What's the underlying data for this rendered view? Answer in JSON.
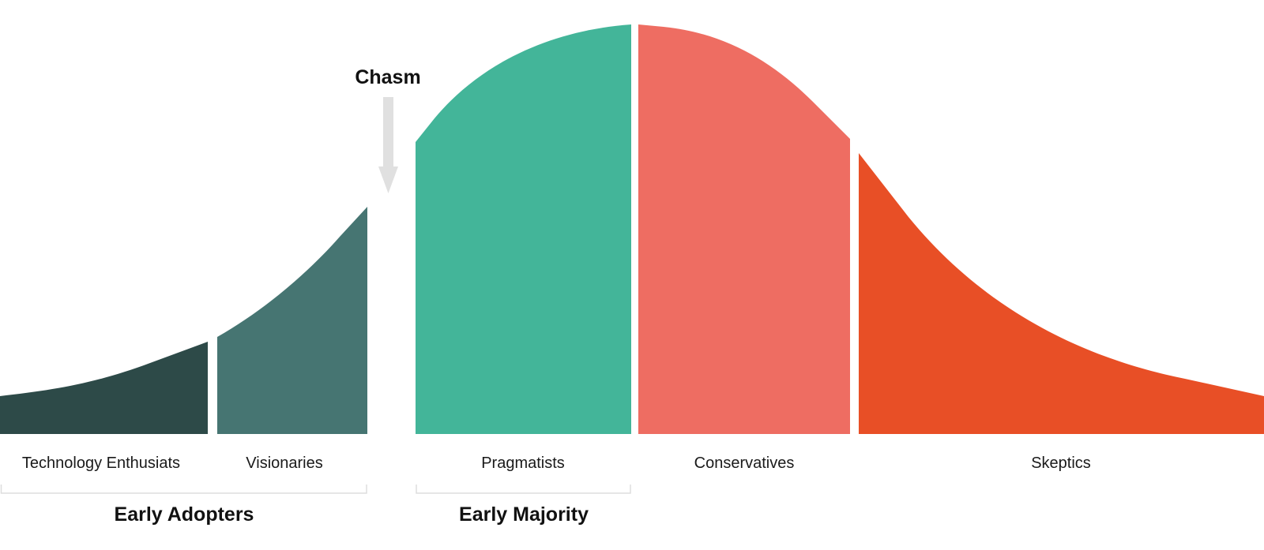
{
  "segments": [
    {
      "label": "Technology Enthusiats",
      "color": "#2d4a48"
    },
    {
      "label": "Visionaries",
      "color": "#467572"
    },
    {
      "label": "Pragmatists",
      "color": "#43b599"
    },
    {
      "label": "Conservatives",
      "color": "#ee6d62"
    },
    {
      "label": "Skeptics",
      "color": "#e84f26"
    }
  ],
  "groups": [
    {
      "label": "Early Adopters"
    },
    {
      "label": "Early Majority"
    }
  ],
  "chasm": {
    "label": "Chasm",
    "arrow_color": "#e0e0e0"
  },
  "bracket_color": "#dddddd"
}
